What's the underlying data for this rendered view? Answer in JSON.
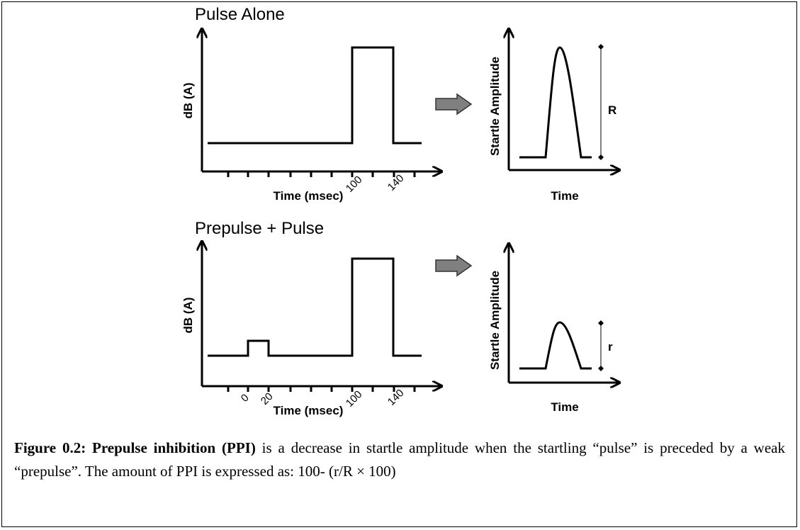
{
  "panels": [
    {
      "title": "Pulse Alone",
      "y_label": "dB (A)",
      "x_label": "Time (msec)",
      "tick_labels": [
        "100",
        "140"
      ],
      "response": {
        "y_label": "Startle Amplitude",
        "x_label": "Time",
        "marker": "R"
      }
    },
    {
      "title": "Prepulse + Pulse",
      "y_label": "dB (A)",
      "x_label": "Time (msec)",
      "tick_labels": [
        "0",
        "20",
        "100",
        "140"
      ],
      "response": {
        "y_label": "Startle Amplitude",
        "x_label": "Time",
        "marker": "r"
      }
    }
  ],
  "caption": {
    "label": "Figure 0.2: Prepulse inhibition (PPI)",
    "text": " is a decrease in startle amplitude when the startling “pulse” is preceded by a weak “prepulse”. The amount of PPI is expressed as: 100- (r/R × 100)"
  }
}
